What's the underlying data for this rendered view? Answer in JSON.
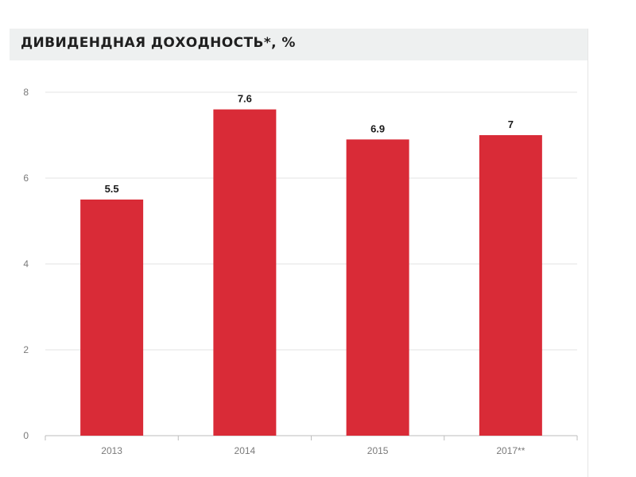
{
  "title": "ДИВИДЕНДНАЯ ДОХОДНОСТЬ*, %",
  "colors": {
    "bar": "#d92b37",
    "grid": "#e3e3e3",
    "axis": "#bdbdbd",
    "title_bg": "#eef0f0"
  },
  "chart_data": {
    "type": "bar",
    "title": "ДИВИДЕНДНАЯ ДОХОДНОСТЬ*, %",
    "categories": [
      "2013",
      "2014",
      "2015",
      "2017**"
    ],
    "values": [
      5.5,
      7.6,
      6.9,
      7
    ],
    "value_labels": [
      "5.5",
      "7.6",
      "6.9",
      "7"
    ],
    "yticks": [
      0,
      2,
      4,
      6,
      8
    ],
    "ylim": [
      0,
      8
    ],
    "xlabel": "",
    "ylabel": "",
    "grid": true,
    "legend": "none"
  }
}
